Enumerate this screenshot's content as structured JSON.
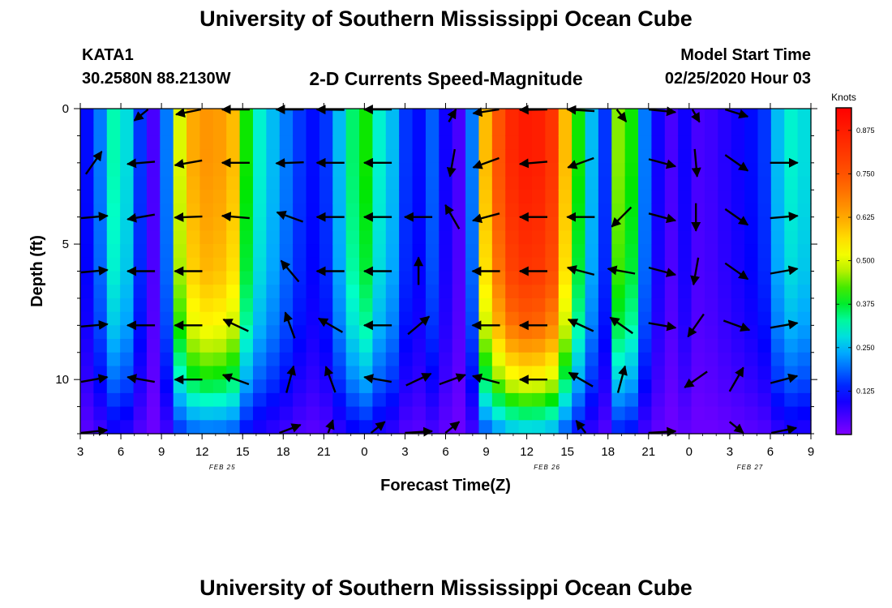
{
  "header": {
    "title": "University of Southern Mississippi Ocean Cube",
    "station": "KATA1",
    "coords": "30.2580N 88.2130W",
    "subtitle": "2-D Currents Speed-Magnitude",
    "model_label": "Model Start Time",
    "model_time": "02/25/2020 Hour 03"
  },
  "footer": {
    "title": "University of Southern Mississippi Ocean Cube"
  },
  "chart_data": {
    "type": "heatmap",
    "title": "2-D Currents Speed-Magnitude",
    "xlabel": "Forecast Time(Z)",
    "ylabel": "Depth (ft)",
    "x_ticks": [
      "3",
      "6",
      "9",
      "12",
      "15",
      "18",
      "21",
      "0",
      "3",
      "6",
      "9",
      "12",
      "15",
      "18",
      "21",
      "0",
      "3",
      "6",
      "9"
    ],
    "date_labels": [
      {
        "label": "FEB 25",
        "tick_index": 3.5
      },
      {
        "label": "FEB 26",
        "tick_index": 11.5
      },
      {
        "label": "FEB 27",
        "tick_index": 16.5
      }
    ],
    "y_ticks": [
      "0",
      "5",
      "10"
    ],
    "ylim": [
      0,
      12
    ],
    "colorbar": {
      "unit_label": "Knots",
      "ticks": [
        "0.875",
        "0.750",
        "0.625",
        "0.500",
        "0.375",
        "0.250",
        "0.125"
      ],
      "range": [
        0.0,
        0.94
      ]
    },
    "speed_time_profile": [
      {
        "hour": 3,
        "value": 0.12
      },
      {
        "hour": 4,
        "value": 0.2
      },
      {
        "hour": 5,
        "value": 0.32
      },
      {
        "hour": 6,
        "value": 0.28
      },
      {
        "hour": 7,
        "value": 0.15
      },
      {
        "hour": 8,
        "value": 0.05
      },
      {
        "hour": 9,
        "value": 0.2
      },
      {
        "hour": 10,
        "value": 0.5
      },
      {
        "hour": 11,
        "value": 0.62
      },
      {
        "hour": 12,
        "value": 0.65
      },
      {
        "hour": 13,
        "value": 0.64
      },
      {
        "hour": 14,
        "value": 0.6
      },
      {
        "hour": 15,
        "value": 0.4
      },
      {
        "hour": 16,
        "value": 0.3
      },
      {
        "hour": 17,
        "value": 0.25
      },
      {
        "hour": 18,
        "value": 0.2
      },
      {
        "hour": 19,
        "value": 0.15
      },
      {
        "hour": 20,
        "value": 0.12
      },
      {
        "hour": 21,
        "value": 0.15
      },
      {
        "hour": 22,
        "value": 0.25
      },
      {
        "hour": 23,
        "value": 0.35
      },
      {
        "hour": 24,
        "value": 0.4
      },
      {
        "hour": 25,
        "value": 0.3
      },
      {
        "hour": 26,
        "value": 0.25
      },
      {
        "hour": 27,
        "value": 0.15
      },
      {
        "hour": 28,
        "value": 0.12
      },
      {
        "hour": 29,
        "value": 0.18
      },
      {
        "hour": 30,
        "value": 0.1
      },
      {
        "hour": 31,
        "value": 0.05
      },
      {
        "hour": 32,
        "value": 0.2
      },
      {
        "hour": 33,
        "value": 0.6
      },
      {
        "hour": 34,
        "value": 0.75
      },
      {
        "hour": 35,
        "value": 0.85
      },
      {
        "hour": 36,
        "value": 0.88
      },
      {
        "hour": 37,
        "value": 0.87
      },
      {
        "hour": 38,
        "value": 0.82
      },
      {
        "hour": 39,
        "value": 0.6
      },
      {
        "hour": 40,
        "value": 0.4
      },
      {
        "hour": 41,
        "value": 0.25
      },
      {
        "hour": 42,
        "value": 0.15
      },
      {
        "hour": 43,
        "value": 0.45
      },
      {
        "hour": 44,
        "value": 0.4
      },
      {
        "hour": 45,
        "value": 0.2
      },
      {
        "hour": 46,
        "value": 0.1
      },
      {
        "hour": 47,
        "value": 0.05
      },
      {
        "hour": 48,
        "value": 0.1
      },
      {
        "hour": 49,
        "value": 0.05
      },
      {
        "hour": 50,
        "value": 0.06
      },
      {
        "hour": 51,
        "value": 0.08
      },
      {
        "hour": 52,
        "value": 0.1
      },
      {
        "hour": 53,
        "value": 0.12
      },
      {
        "hour": 54,
        "value": 0.15
      },
      {
        "hour": 55,
        "value": 0.25
      },
      {
        "hour": 56,
        "value": 0.3
      },
      {
        "hour": 57,
        "value": 0.28
      }
    ],
    "depth_profile": [
      {
        "depth": 0,
        "factor": 1.0
      },
      {
        "depth": 2,
        "factor": 1.0
      },
      {
        "depth": 4,
        "factor": 0.97
      },
      {
        "depth": 6,
        "factor": 0.93
      },
      {
        "depth": 8,
        "factor": 0.82
      },
      {
        "depth": 10,
        "factor": 0.6
      },
      {
        "depth": 12,
        "factor": 0.28
      }
    ],
    "vectors": [
      {
        "hour": 4,
        "depth": 2,
        "dir": 35
      },
      {
        "hour": 4,
        "depth": 4,
        "dir": 85
      },
      {
        "hour": 4,
        "depth": 6,
        "dir": 85
      },
      {
        "hour": 4,
        "depth": 8,
        "dir": 85
      },
      {
        "hour": 4,
        "depth": 10,
        "dir": 80
      },
      {
        "hour": 4,
        "depth": 12,
        "dir": 75
      },
      {
        "hour": 7.5,
        "depth": 0,
        "dir": 210
      },
      {
        "hour": 7.5,
        "depth": 2,
        "dir": 265
      },
      {
        "hour": 7.5,
        "depth": 4,
        "dir": 260
      },
      {
        "hour": 7.5,
        "depth": 6,
        "dir": 270
      },
      {
        "hour": 7.5,
        "depth": 8,
        "dir": 270
      },
      {
        "hour": 7.5,
        "depth": 10,
        "dir": 280
      },
      {
        "hour": 11,
        "depth": 0,
        "dir": 245
      },
      {
        "hour": 11,
        "depth": 2,
        "dir": 260
      },
      {
        "hour": 11,
        "depth": 4,
        "dir": 268
      },
      {
        "hour": 11,
        "depth": 6,
        "dir": 270
      },
      {
        "hour": 11,
        "depth": 8,
        "dir": 270
      },
      {
        "hour": 11,
        "depth": 10,
        "dir": 270
      },
      {
        "hour": 14.5,
        "depth": 0,
        "dir": 270
      },
      {
        "hour": 14.5,
        "depth": 2,
        "dir": 270
      },
      {
        "hour": 14.5,
        "depth": 4,
        "dir": 275
      },
      {
        "hour": 14.5,
        "depth": 8,
        "dir": 295
      },
      {
        "hour": 14.5,
        "depth": 10,
        "dir": 290
      },
      {
        "hour": 18.5,
        "depth": 0,
        "dir": 270
      },
      {
        "hour": 18.5,
        "depth": 2,
        "dir": 268
      },
      {
        "hour": 18.5,
        "depth": 4,
        "dir": 290
      },
      {
        "hour": 18.5,
        "depth": 6,
        "dir": 320
      },
      {
        "hour": 18.5,
        "depth": 8,
        "dir": 340
      },
      {
        "hour": 18.5,
        "depth": 10,
        "dir": 15
      },
      {
        "hour": 18.5,
        "depth": 12,
        "dir": 50
      },
      {
        "hour": 21.5,
        "depth": 0,
        "dir": 275
      },
      {
        "hour": 21.5,
        "depth": 2,
        "dir": 270
      },
      {
        "hour": 21.5,
        "depth": 4,
        "dir": 270
      },
      {
        "hour": 21.5,
        "depth": 6,
        "dir": 270
      },
      {
        "hour": 21.5,
        "depth": 8,
        "dir": 300
      },
      {
        "hour": 21.5,
        "depth": 10,
        "dir": 340
      },
      {
        "hour": 21.5,
        "depth": 12,
        "dir": 10
      },
      {
        "hour": 25,
        "depth": 0,
        "dir": 270
      },
      {
        "hour": 25,
        "depth": 2,
        "dir": 270
      },
      {
        "hour": 25,
        "depth": 4,
        "dir": 270
      },
      {
        "hour": 25,
        "depth": 6,
        "dir": 270
      },
      {
        "hour": 25,
        "depth": 8,
        "dir": 270
      },
      {
        "hour": 25,
        "depth": 10,
        "dir": 280
      },
      {
        "hour": 25,
        "depth": 12,
        "dir": 30
      },
      {
        "hour": 28,
        "depth": 4,
        "dir": 270
      },
      {
        "hour": 28,
        "depth": 6,
        "dir": 0
      },
      {
        "hour": 28,
        "depth": 8,
        "dir": 50
      },
      {
        "hour": 28,
        "depth": 10,
        "dir": 65
      },
      {
        "hour": 28,
        "depth": 12,
        "dir": 80
      },
      {
        "hour": 30.5,
        "depth": 0,
        "dir": 15
      },
      {
        "hour": 30.5,
        "depth": 2,
        "dir": 190
      },
      {
        "hour": 30.5,
        "depth": 4,
        "dir": 330
      },
      {
        "hour": 30.5,
        "depth": 10,
        "dir": 70
      },
      {
        "hour": 30.5,
        "depth": 12,
        "dir": 30
      },
      {
        "hour": 33,
        "depth": 0,
        "dir": 250
      },
      {
        "hour": 33,
        "depth": 2,
        "dir": 250
      },
      {
        "hour": 33,
        "depth": 4,
        "dir": 255
      },
      {
        "hour": 33,
        "depth": 6,
        "dir": 270
      },
      {
        "hour": 33,
        "depth": 8,
        "dir": 270
      },
      {
        "hour": 33,
        "depth": 10,
        "dir": 285
      },
      {
        "hour": 36.5,
        "depth": 0,
        "dir": 265
      },
      {
        "hour": 36.5,
        "depth": 2,
        "dir": 265
      },
      {
        "hour": 36.5,
        "depth": 4,
        "dir": 270
      },
      {
        "hour": 36.5,
        "depth": 6,
        "dir": 270
      },
      {
        "hour": 36.5,
        "depth": 8,
        "dir": 270
      },
      {
        "hour": 36.5,
        "depth": 10,
        "dir": 270
      },
      {
        "hour": 40,
        "depth": 0,
        "dir": 280
      },
      {
        "hour": 40,
        "depth": 2,
        "dir": 250
      },
      {
        "hour": 40,
        "depth": 4,
        "dir": 270
      },
      {
        "hour": 40,
        "depth": 6,
        "dir": 285
      },
      {
        "hour": 40,
        "depth": 8,
        "dir": 295
      },
      {
        "hour": 40,
        "depth": 10,
        "dir": 300
      },
      {
        "hour": 40,
        "depth": 12,
        "dir": 340
      },
      {
        "hour": 43,
        "depth": 0,
        "dir": 160
      },
      {
        "hour": 43,
        "depth": 4,
        "dir": 225
      },
      {
        "hour": 43,
        "depth": 6,
        "dir": 280
      },
      {
        "hour": 43,
        "depth": 8,
        "dir": 305
      },
      {
        "hour": 43,
        "depth": 10,
        "dir": 15
      },
      {
        "hour": 46,
        "depth": 0,
        "dir": 105
      },
      {
        "hour": 46,
        "depth": 2,
        "dir": 105
      },
      {
        "hour": 46,
        "depth": 4,
        "dir": 105
      },
      {
        "hour": 46,
        "depth": 6,
        "dir": 105
      },
      {
        "hour": 46,
        "depth": 8,
        "dir": 100
      },
      {
        "hour": 46,
        "depth": 12,
        "dir": 80
      },
      {
        "hour": 48.5,
        "depth": 0,
        "dir": 165
      },
      {
        "hour": 48.5,
        "depth": 2,
        "dir": 175
      },
      {
        "hour": 48.5,
        "depth": 4,
        "dir": 180
      },
      {
        "hour": 48.5,
        "depth": 6,
        "dir": 190
      },
      {
        "hour": 48.5,
        "depth": 8,
        "dir": 215
      },
      {
        "hour": 48.5,
        "depth": 10,
        "dir": 235
      },
      {
        "hour": 51.5,
        "depth": 0,
        "dir": 125
      },
      {
        "hour": 51.5,
        "depth": 2,
        "dir": 125
      },
      {
        "hour": 51.5,
        "depth": 4,
        "dir": 125
      },
      {
        "hour": 51.5,
        "depth": 6,
        "dir": 125
      },
      {
        "hour": 51.5,
        "depth": 8,
        "dir": 110
      },
      {
        "hour": 51.5,
        "depth": 10,
        "dir": 30
      },
      {
        "hour": 51.5,
        "depth": 12,
        "dir": 150
      },
      {
        "hour": 55,
        "depth": 2,
        "dir": 90
      },
      {
        "hour": 55,
        "depth": 4,
        "dir": 85
      },
      {
        "hour": 55,
        "depth": 6,
        "dir": 80
      },
      {
        "hour": 55,
        "depth": 8,
        "dir": 80
      },
      {
        "hour": 55,
        "depth": 10,
        "dir": 75
      },
      {
        "hour": 55,
        "depth": 12,
        "dir": 65
      }
    ]
  }
}
